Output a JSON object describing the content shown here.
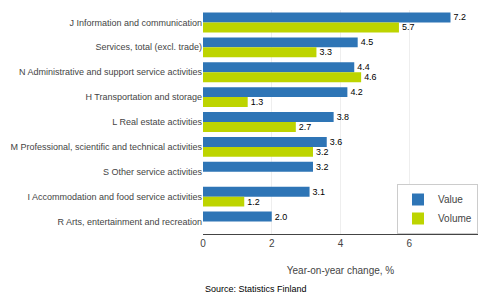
{
  "chart_data": {
    "type": "bar",
    "orientation": "horizontal",
    "categories": [
      "J Information and communication",
      "Services, total (excl. trade)",
      "N Administrative and support service activities",
      "H Transportation and storage",
      "L Real estate activities",
      "M Professional, scientific and technical activities",
      "S Other service activities",
      "I Accommodation and food service activities",
      "R Arts, entertainment and recreation"
    ],
    "series": [
      {
        "name": "Value",
        "color": "#2e75b6",
        "values": [
          7.2,
          4.5,
          4.4,
          4.2,
          3.8,
          3.6,
          3.2,
          3.1,
          2.0
        ],
        "value_labels": [
          "7.2",
          "4.5",
          "4.4",
          "4.2",
          "3.8",
          "3.6",
          "3.2",
          "3.1",
          "2.0"
        ]
      },
      {
        "name": "Volume",
        "color": "#bdd400",
        "values": [
          5.7,
          3.3,
          4.6,
          1.3,
          2.7,
          3.2,
          null,
          1.2,
          null
        ],
        "value_labels": [
          "5.7",
          "3.3",
          "4.6",
          "1.3",
          "2.7",
          "3.2",
          null,
          "1.2",
          null
        ]
      }
    ],
    "xlabel": "Year-on-year change, %",
    "xlim": [
      0,
      8
    ],
    "xticks": [
      0,
      2,
      4,
      6
    ],
    "grid": true,
    "legend": "lower right",
    "data_labels": true,
    "annotations": [
      "Source: Statistics Finland"
    ]
  }
}
